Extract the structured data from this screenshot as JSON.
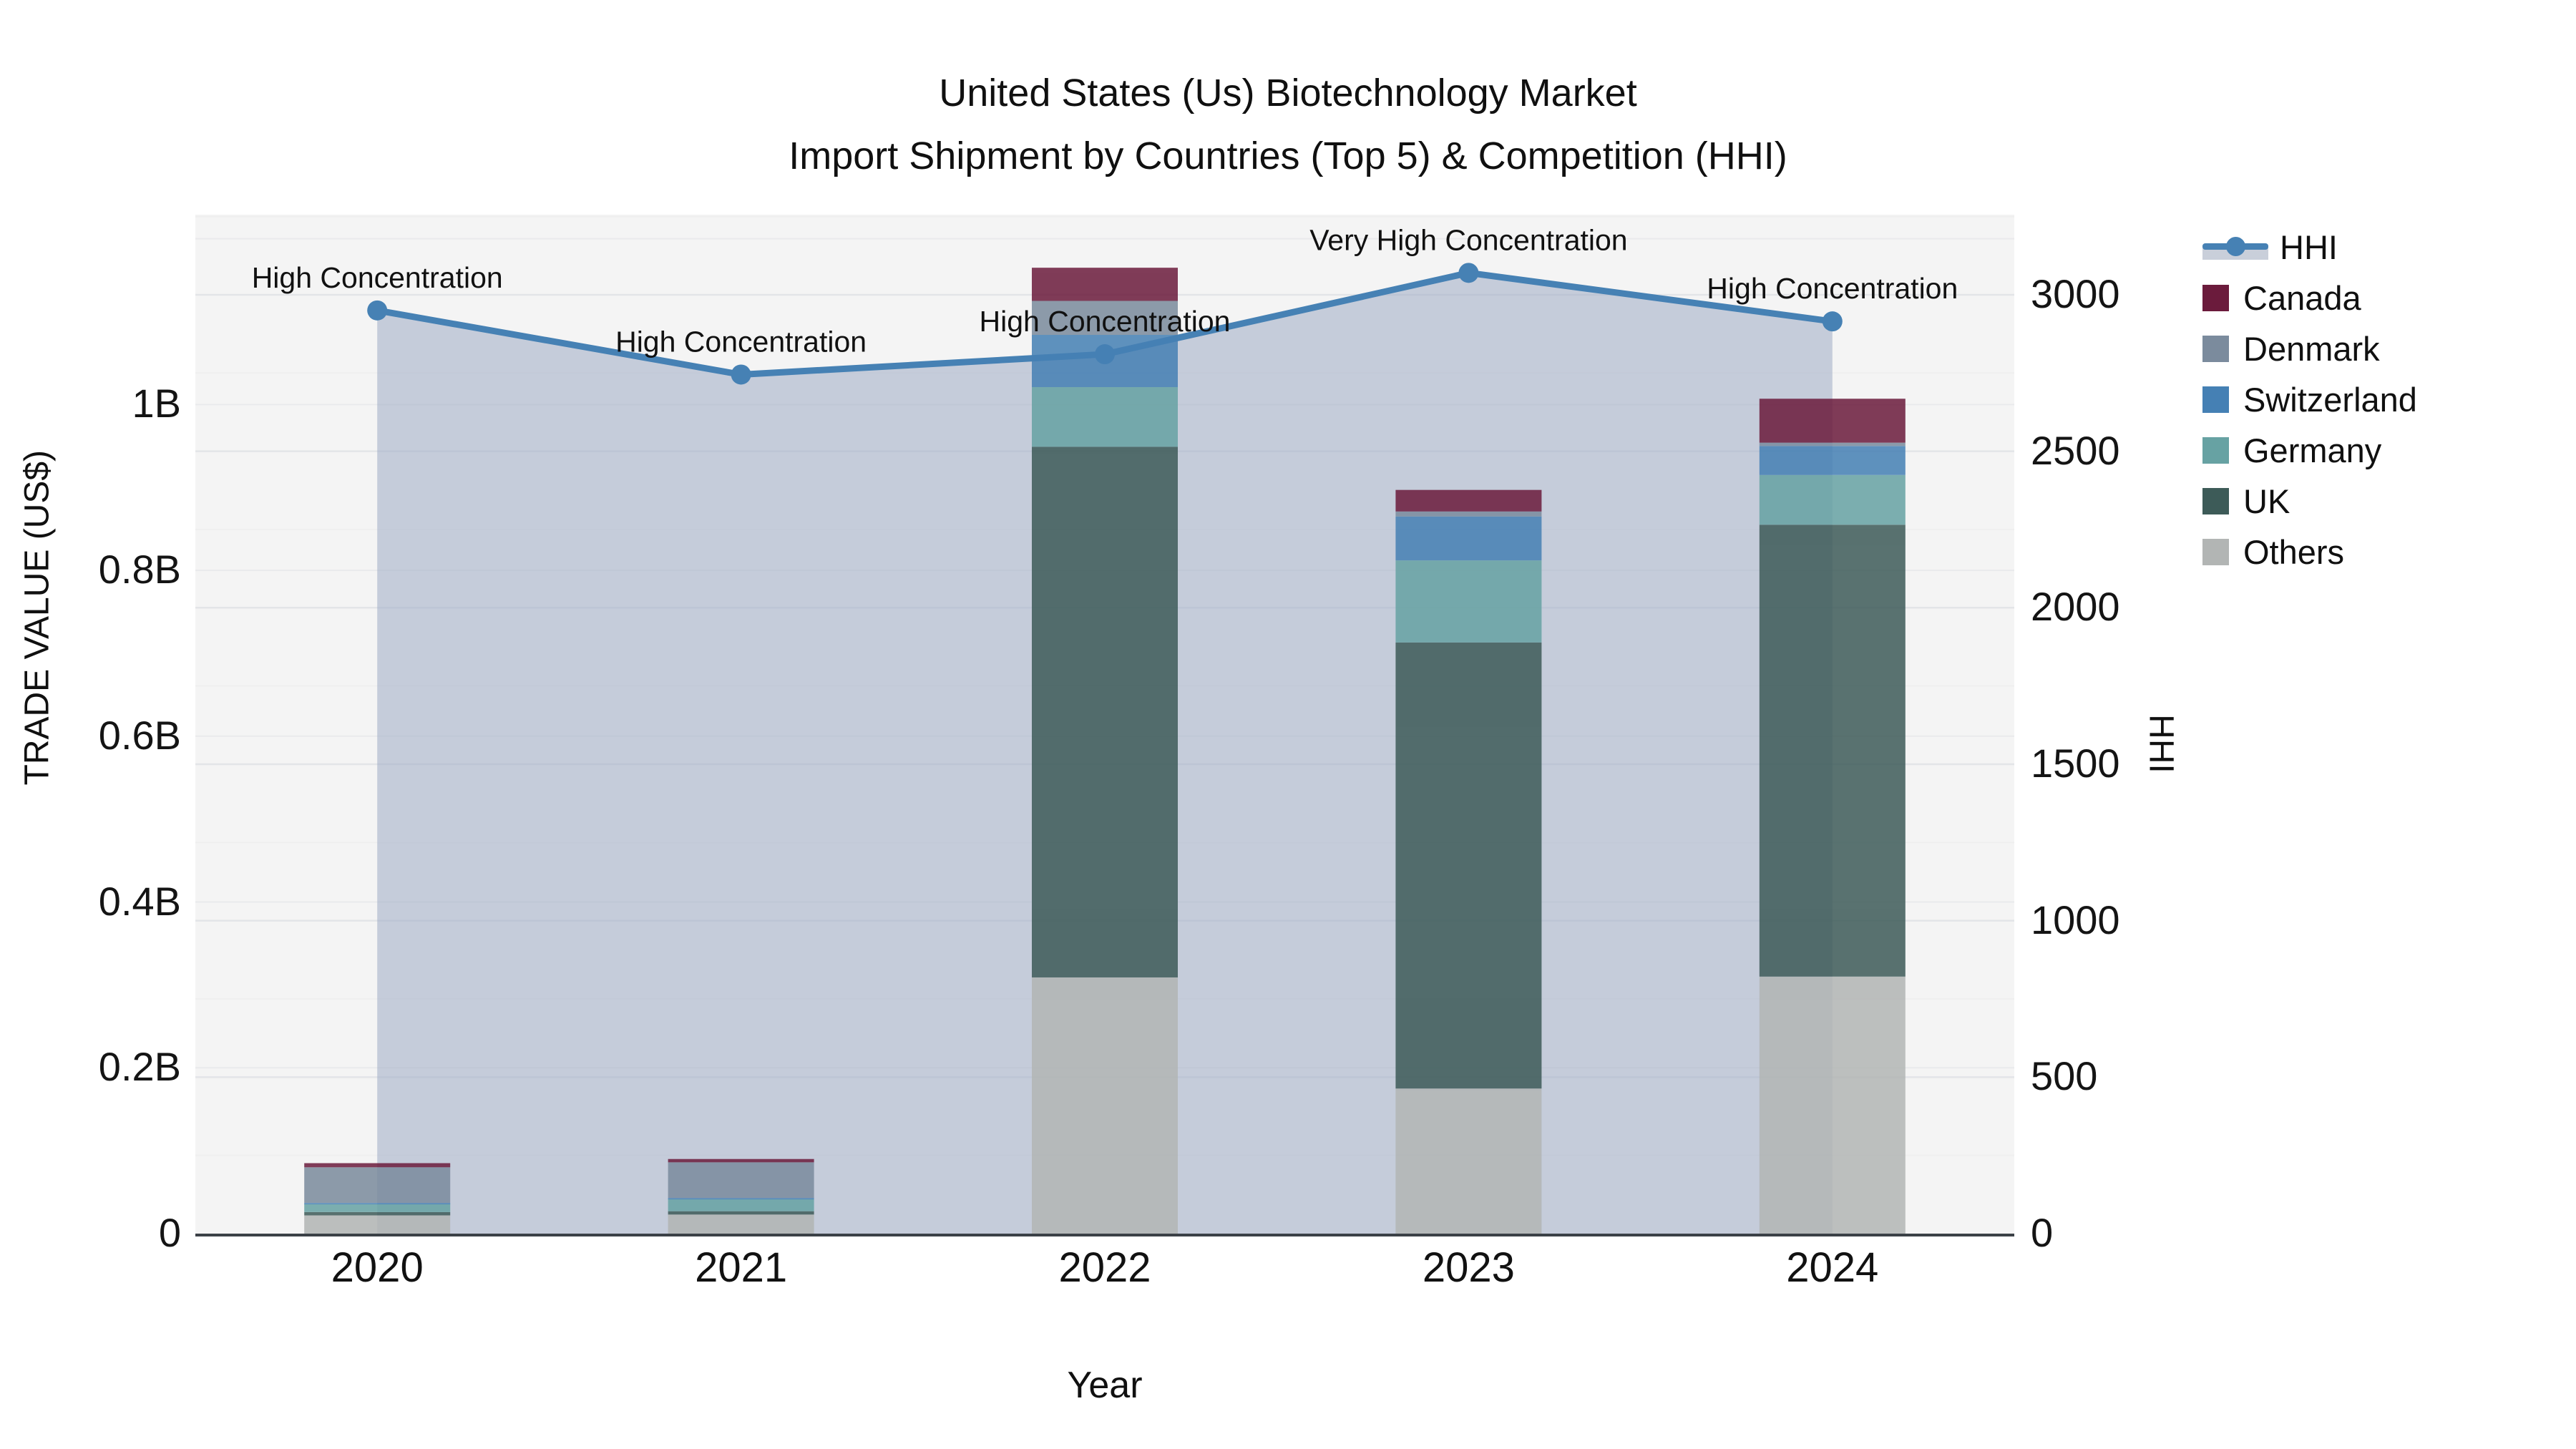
{
  "title": {
    "line1": "United States (Us) Biotechnology Market",
    "line2": "Import Shipment by Countries (Top 5) & Competition (HHI)"
  },
  "axes": {
    "left_title": "TRADE VALUE (US$)",
    "right_title": "HHI",
    "x_title": "Year",
    "left_ticks": [
      {
        "label": "0",
        "value": 0
      },
      {
        "label": "0.2B",
        "value": 0.2
      },
      {
        "label": "0.4B",
        "value": 0.4
      },
      {
        "label": "0.6B",
        "value": 0.6
      },
      {
        "label": "0.8B",
        "value": 0.8
      },
      {
        "label": "1B",
        "value": 1.0
      }
    ],
    "right_ticks": [
      {
        "label": "0",
        "value": 0
      },
      {
        "label": "500",
        "value": 500
      },
      {
        "label": "1000",
        "value": 1000
      },
      {
        "label": "1500",
        "value": 1500
      },
      {
        "label": "2000",
        "value": 2000
      },
      {
        "label": "2500",
        "value": 2500
      },
      {
        "label": "3000",
        "value": 3000
      }
    ]
  },
  "legend": {
    "position": "right",
    "items": [
      {
        "label": "HHI",
        "type": "line",
        "color": "#4681b4"
      },
      {
        "label": "Canada",
        "type": "swatch",
        "color": "#6b1b3c"
      },
      {
        "label": "Denmark",
        "type": "swatch",
        "color": "#7b8b9d"
      },
      {
        "label": "Switzerland",
        "type": "swatch",
        "color": "#4580b4"
      },
      {
        "label": "Germany",
        "type": "swatch",
        "color": "#67a2a3"
      },
      {
        "label": "UK",
        "type": "swatch",
        "color": "#3d5b58"
      },
      {
        "label": "Others",
        "type": "swatch",
        "color": "#b2b5b4"
      }
    ]
  },
  "chart_data": {
    "type": "bar+line",
    "title": "United States (Us) Biotechnology Market Import Shipment by Countries (Top 5) & Competition (HHI)",
    "xlabel": "Year",
    "ylabel_left": "TRADE VALUE (US$)",
    "ylabel_right": "HHI",
    "categories": [
      "2020",
      "2021",
      "2022",
      "2023",
      "2024"
    ],
    "bar_unit": "billions USD",
    "stack_order_bottom_to_top": [
      "Others",
      "UK",
      "Germany",
      "Switzerland",
      "Denmark",
      "Canada"
    ],
    "series": [
      {
        "name": "Canada",
        "color": "#6b1b3c",
        "values": [
          0.005,
          0.004,
          0.04,
          0.026,
          0.053
        ]
      },
      {
        "name": "Denmark",
        "color": "#7b8b9d",
        "values": [
          0.043,
          0.043,
          0.041,
          0.006,
          0.004
        ]
      },
      {
        "name": "Switzerland",
        "color": "#4580b4",
        "values": [
          0.001,
          0.001,
          0.063,
          0.053,
          0.035
        ]
      },
      {
        "name": "Germany",
        "color": "#67a2a3",
        "values": [
          0.01,
          0.015,
          0.072,
          0.099,
          0.06
        ]
      },
      {
        "name": "UK",
        "color": "#3d5b58",
        "values": [
          0.004,
          0.004,
          0.64,
          0.538,
          0.545
        ]
      },
      {
        "name": "Others",
        "color": "#b2b5b4",
        "values": [
          0.022,
          0.023,
          0.309,
          0.175,
          0.31
        ]
      }
    ],
    "line_series": {
      "name": "HHI",
      "color": "#4681b4",
      "axis": "right",
      "area_fill": "rgba(158,172,196,0.55)",
      "values": [
        2950,
        2745,
        2810,
        3070,
        2915
      ]
    },
    "annotations": [
      {
        "category": "2020",
        "text": "High Concentration"
      },
      {
        "category": "2021",
        "text": "High Concentration"
      },
      {
        "category": "2022",
        "text": "High Concentration"
      },
      {
        "category": "2023",
        "text": "Very High Concentration"
      },
      {
        "category": "2024",
        "text": "High Concentration"
      }
    ],
    "ylim_left": [
      0,
      1.229
    ],
    "ylim_right": [
      0,
      3256
    ],
    "grid": true,
    "legend_position": "right"
  }
}
